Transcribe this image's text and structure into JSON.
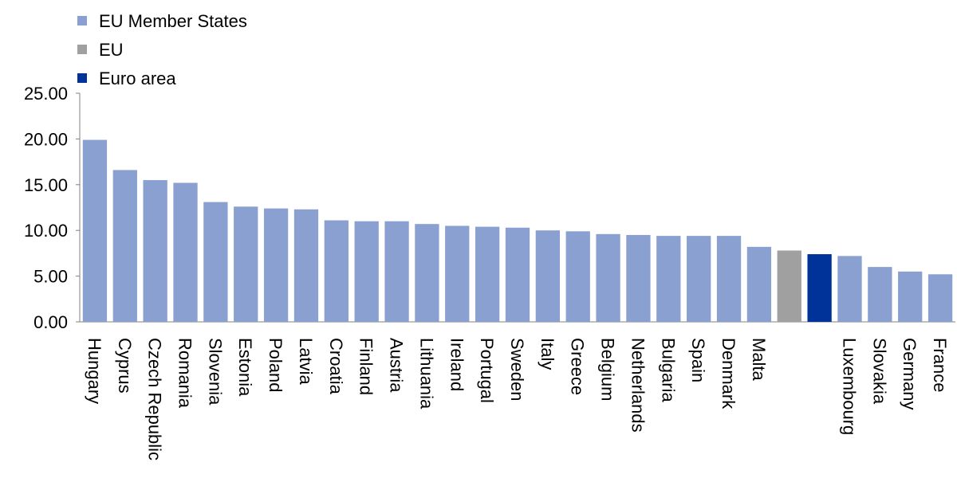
{
  "legend": {
    "items": [
      {
        "label": "EU Member States",
        "color": "#8aa0d0"
      },
      {
        "label": "EU",
        "color": "#a0a0a0"
      },
      {
        "label": "Euro area",
        "color": "#003399"
      }
    ]
  },
  "chart_data": {
    "type": "bar",
    "title": "",
    "xlabel": "",
    "ylabel": "",
    "ylim": [
      0,
      25
    ],
    "yticks": [
      "0.00",
      "5.00",
      "10.00",
      "15.00",
      "20.00",
      "25.00"
    ],
    "grid": false,
    "legend_position": "top-left",
    "categories": [
      "Hungary",
      "Cyprus",
      "Czech Republic",
      "Romania",
      "Slovenia",
      "Estonia",
      "Poland",
      "Latvia",
      "Croatia",
      "Finland",
      "Austria",
      "Lithuania",
      "Ireland",
      "Portugal",
      "Sweden",
      "Italy",
      "Greece",
      "Belgium",
      "Netherlands",
      "Bulgaria",
      "Spain",
      "Denmark",
      "Malta",
      "",
      "",
      "Luxembourg",
      "Slovakia",
      "Germany",
      "France"
    ],
    "values": [
      19.9,
      16.6,
      15.5,
      15.2,
      13.1,
      12.6,
      12.4,
      12.3,
      11.1,
      11.0,
      11.0,
      10.7,
      10.5,
      10.4,
      10.3,
      10.0,
      9.9,
      9.6,
      9.5,
      9.4,
      9.4,
      9.4,
      8.2,
      7.8,
      7.4,
      7.2,
      6.0,
      5.5,
      5.2
    ],
    "groups": [
      "member",
      "member",
      "member",
      "member",
      "member",
      "member",
      "member",
      "member",
      "member",
      "member",
      "member",
      "member",
      "member",
      "member",
      "member",
      "member",
      "member",
      "member",
      "member",
      "member",
      "member",
      "member",
      "member",
      "eu",
      "euro",
      "member",
      "member",
      "member",
      "member"
    ],
    "colors": {
      "member": "#8aa0d0",
      "eu": "#a0a0a0",
      "euro": "#003399"
    }
  }
}
